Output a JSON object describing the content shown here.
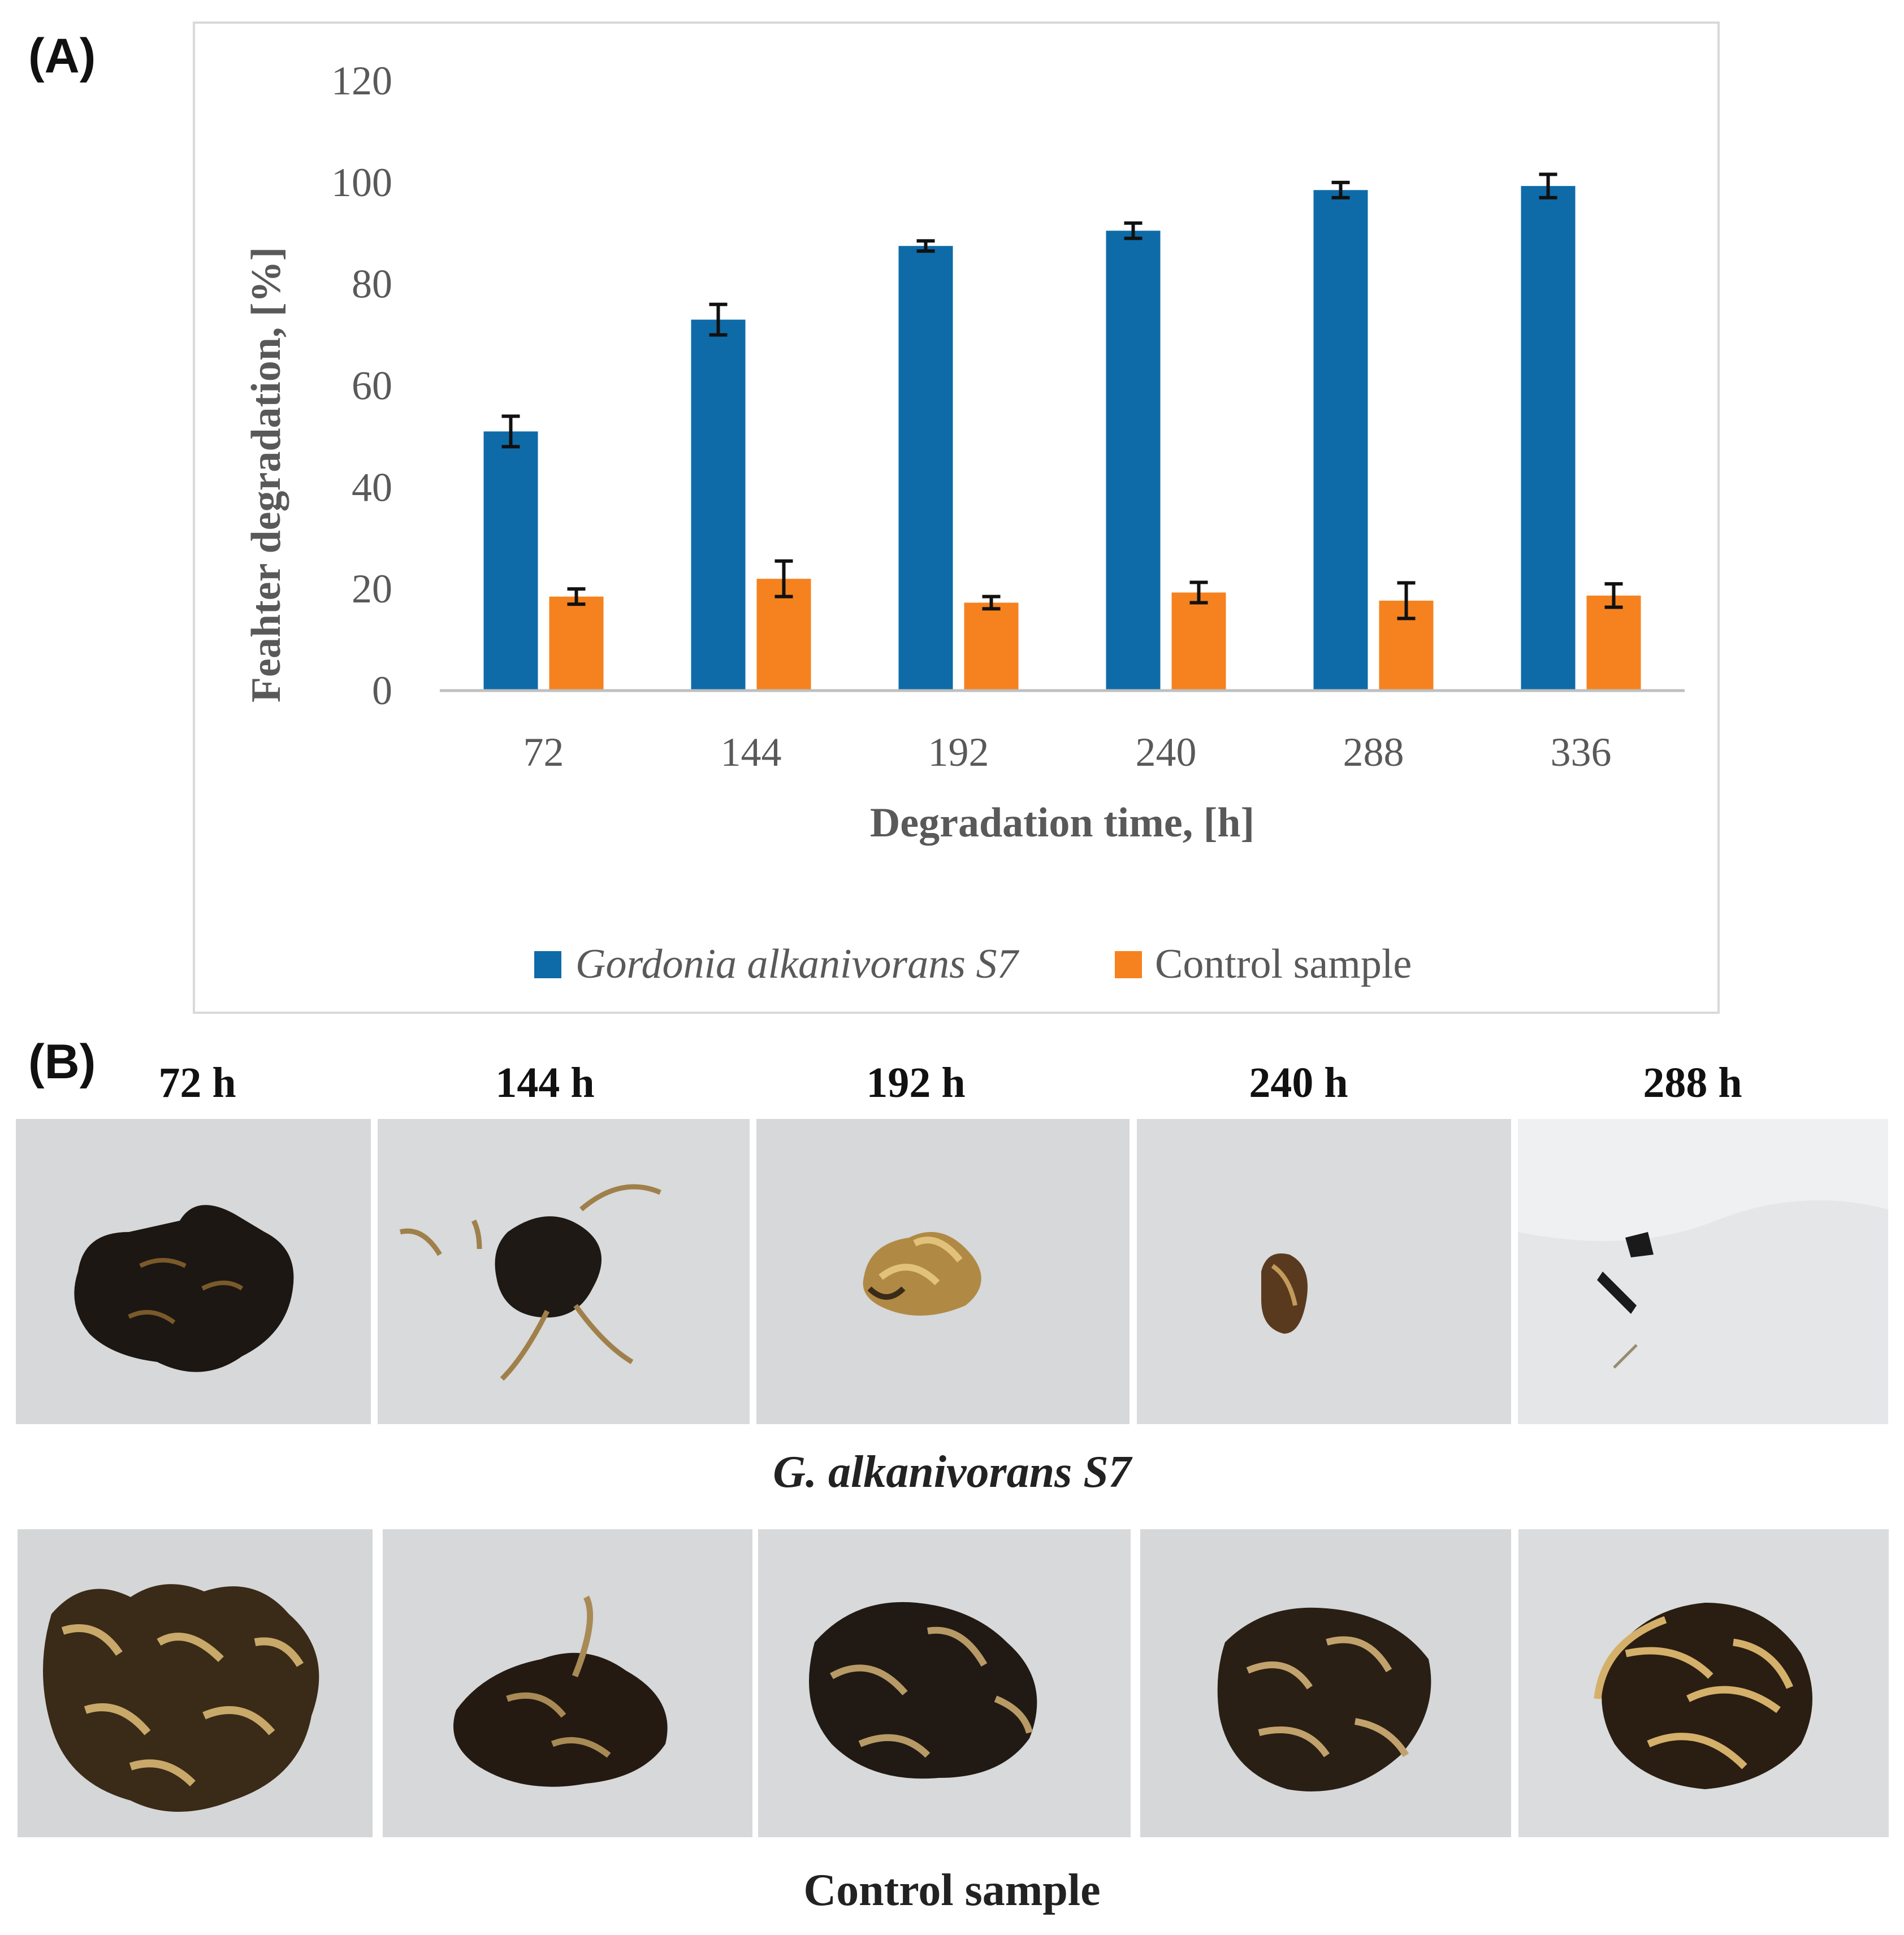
{
  "panel_a_label": "(A)",
  "panel_b_label": "(B)",
  "chart_data": {
    "type": "bar",
    "title": "",
    "xlabel": "Degradation time, [h]",
    "ylabel": "Feahter degradation, [%]",
    "categories": [
      "72",
      "144",
      "192",
      "240",
      "288",
      "336"
    ],
    "ylim": [
      0,
      120
    ],
    "yticks": [
      0,
      20,
      40,
      60,
      80,
      100,
      120
    ],
    "grid": false,
    "legend_position": "bottom",
    "series": [
      {
        "name": "Gordonia alkanivorans S7",
        "color": "#0E6BA8",
        "values": [
          51,
          73,
          87.5,
          90.5,
          98.5,
          99.3
        ],
        "errors": [
          3,
          3,
          1,
          1.5,
          1.5,
          2.3
        ]
      },
      {
        "name": "Control sample",
        "color": "#F5821F",
        "values": [
          18.5,
          22,
          17.3,
          19.3,
          17.7,
          18.7
        ],
        "errors": [
          1.5,
          3.5,
          1.2,
          2,
          3.5,
          2.3
        ]
      }
    ]
  },
  "panel_b": {
    "time_labels": [
      "72 h",
      "144 h",
      "192 h",
      "240 h",
      "288 h"
    ],
    "row1_caption": "G. alkanivorans S7",
    "row2_caption": "Control sample"
  }
}
